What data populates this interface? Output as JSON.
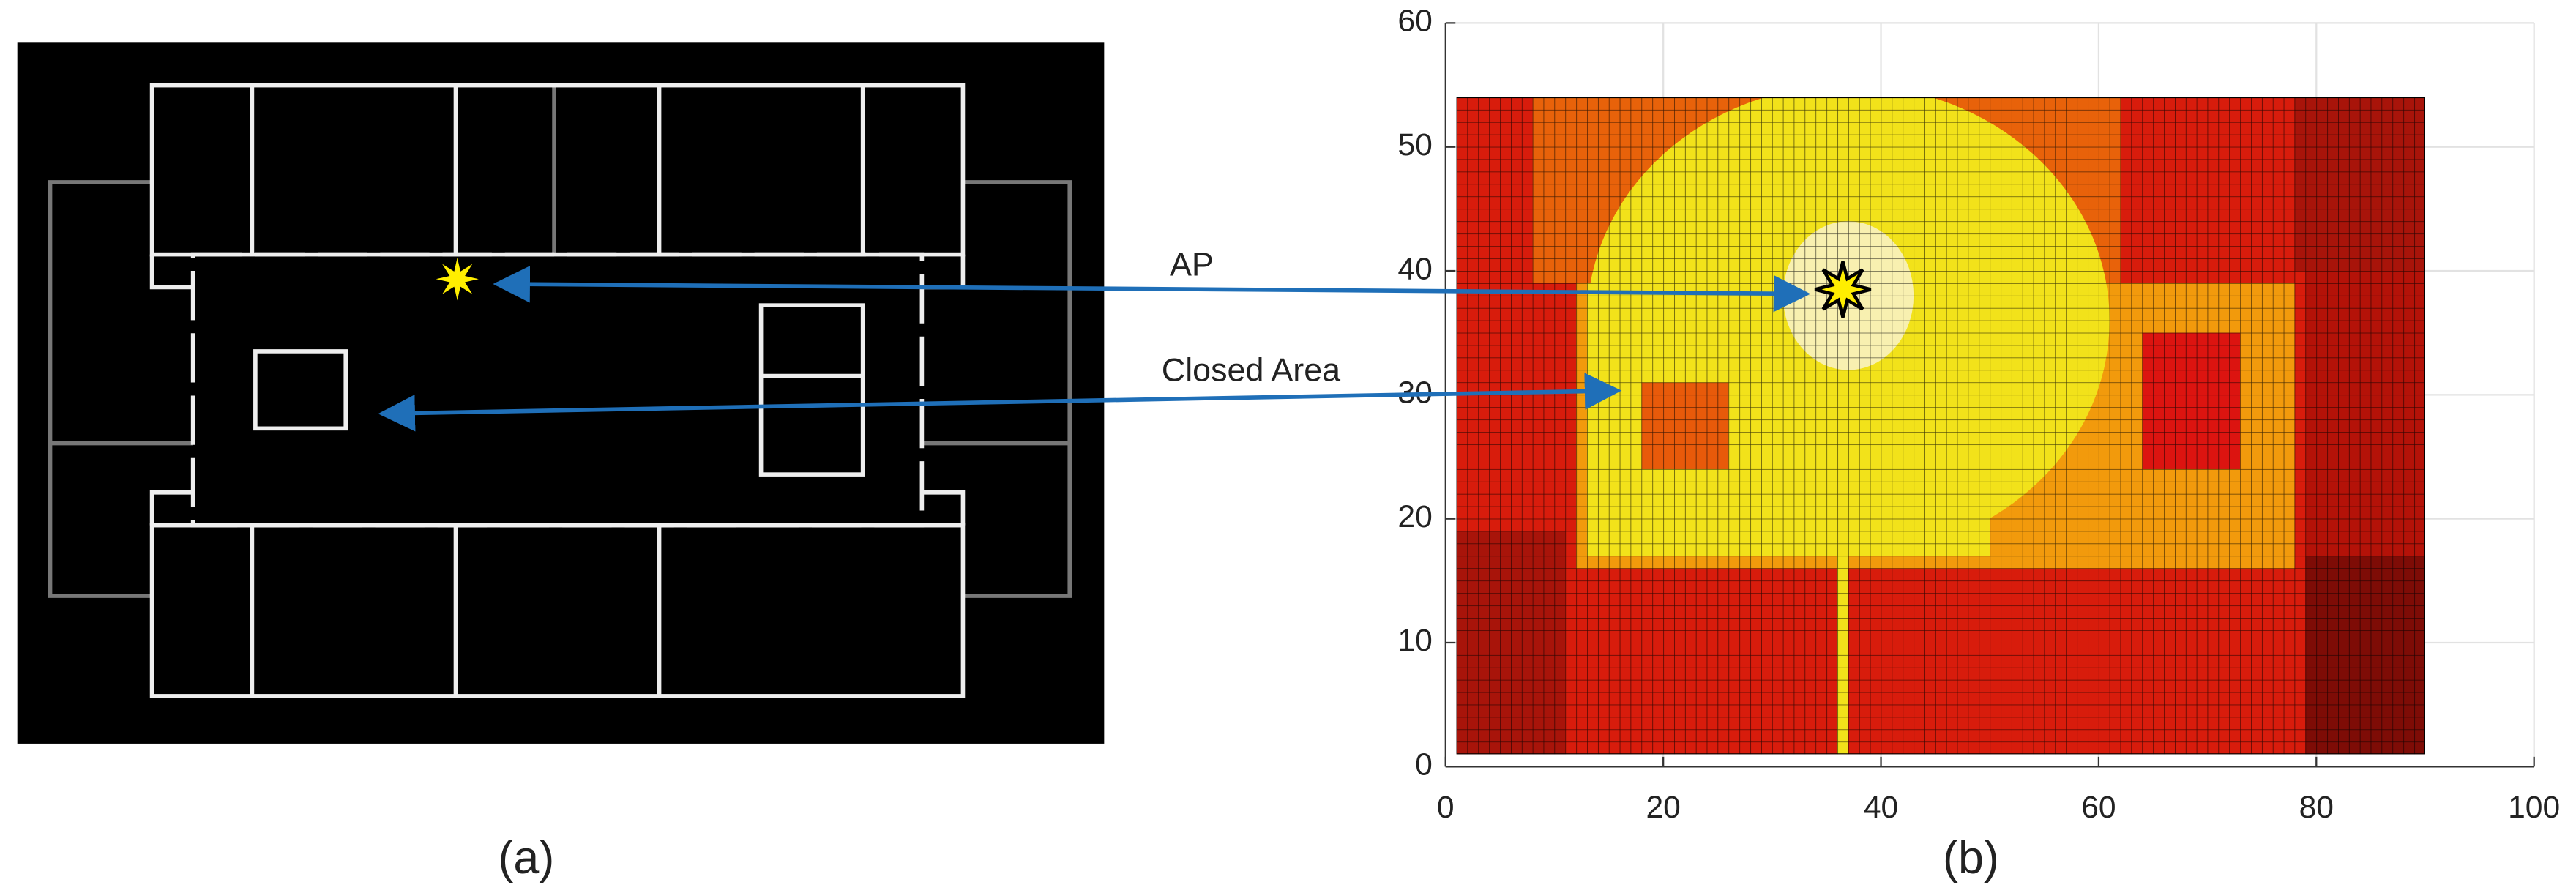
{
  "panel_labels": [
    "(a)",
    "(b)"
  ],
  "chart_data": {
    "type": "heatmap",
    "xlim": [
      0,
      100
    ],
    "ylim": [
      0,
      60
    ],
    "xticks": [
      0,
      20,
      40,
      60,
      80,
      100
    ],
    "yticks": [
      0,
      10,
      20,
      30,
      40,
      50,
      60
    ],
    "grid": true,
    "regions": [
      {
        "shape": "rect",
        "x": [
          1,
          90
        ],
        "y": [
          1,
          54
        ],
        "color": "#d81c0c"
      },
      {
        "shape": "rect",
        "x": [
          1,
          11
        ],
        "y": [
          1,
          19
        ],
        "color": "#a8140a"
      },
      {
        "shape": "rect",
        "x": [
          79,
          90
        ],
        "y": [
          1,
          17
        ],
        "color": "#7e0c06"
      },
      {
        "shape": "rect",
        "x": [
          79,
          90
        ],
        "y": [
          17,
          40
        ],
        "color": "#b41208"
      },
      {
        "shape": "rect",
        "x": [
          78,
          90
        ],
        "y": [
          40,
          54
        ],
        "color": "#a8140a"
      },
      {
        "shape": "rect",
        "x": [
          8,
          62
        ],
        "y": [
          39,
          54
        ],
        "color": "#e8620a"
      },
      {
        "shape": "rect",
        "x": [
          12,
          78
        ],
        "y": [
          16,
          39
        ],
        "color": "#f29a0c"
      },
      {
        "shape": "ellipse",
        "x": [
          13,
          61
        ],
        "y": [
          17,
          55
        ],
        "color": "#f2e21a"
      },
      {
        "shape": "rect",
        "x": [
          13,
          50
        ],
        "y": [
          17,
          39
        ],
        "color": "#f2e21a"
      },
      {
        "shape": "rect",
        "x": [
          36,
          37
        ],
        "y": [
          1,
          17
        ],
        "color": "#f2e21a"
      },
      {
        "shape": "ellipse",
        "x": [
          31,
          43
        ],
        "y": [
          32,
          44
        ],
        "color": "#f8f0b0"
      },
      {
        "shape": "rect",
        "x": [
          18,
          26
        ],
        "y": [
          24,
          31
        ],
        "color": "#e85a0a"
      },
      {
        "shape": "rect",
        "x": [
          64,
          73
        ],
        "y": [
          24,
          35
        ],
        "color": "#dc1410"
      }
    ],
    "marker": {
      "x": 36.5,
      "y": 38.5,
      "color": "#ffee00"
    },
    "annotations": [
      "AP",
      "Closed Area"
    ]
  }
}
